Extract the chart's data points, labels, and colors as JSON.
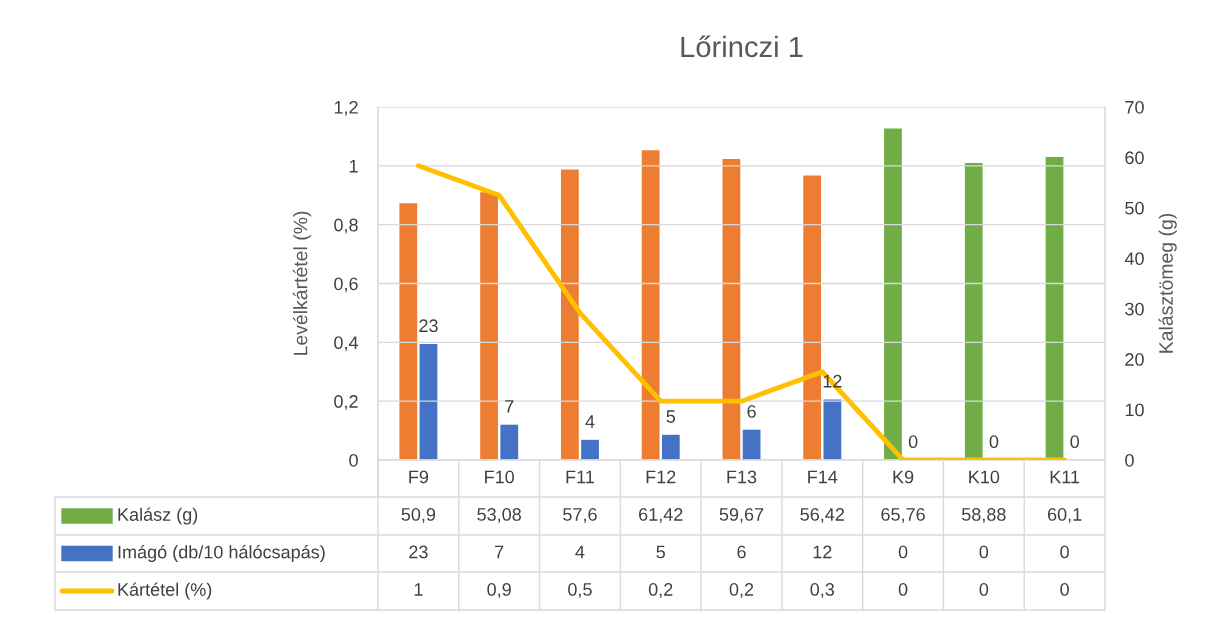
{
  "chart_data": {
    "type": "bar",
    "title": "Lőrinczi 1",
    "ylabel": "Levélkártétel (%)",
    "y2label": "Kalásztömeg (g)",
    "categories": [
      "F9",
      "F10",
      "F11",
      "F12",
      "F13",
      "F14",
      "K9",
      "K10",
      "K11"
    ],
    "series": [
      {
        "name": "Kalász (g)",
        "axis": "y2",
        "color": "#70ad47",
        "colors": [
          "#ed7d31",
          "#ed7d31",
          "#ed7d31",
          "#ed7d31",
          "#ed7d31",
          "#ed7d31",
          "#70ad47",
          "#70ad47",
          "#70ad47"
        ],
        "values": [
          50.9,
          53.08,
          57.6,
          61.42,
          59.67,
          56.42,
          65.76,
          58.88,
          60.1
        ],
        "value_labels": [
          "50,9",
          "53,08",
          "57,6",
          "61,42",
          "59,67",
          "56,42",
          "65,76",
          "58,88",
          "60,1"
        ]
      },
      {
        "name": "Imágó (db/10 hálócsapás)",
        "axis": "y2",
        "color": "#4472c4",
        "values": [
          23,
          7,
          4,
          5,
          6,
          12,
          0,
          0,
          0
        ],
        "value_labels": [
          "23",
          "7",
          "4",
          "5",
          "6",
          "12",
          "0",
          "0",
          "0"
        ],
        "data_labels": true
      },
      {
        "name": "Kártétel (%)",
        "type": "line",
        "axis": "y",
        "color": "#ffc000",
        "values": [
          1,
          0.9,
          0.5,
          0.2,
          0.2,
          0.3,
          0,
          0,
          0
        ],
        "value_labels": [
          "1",
          "0,9",
          "0,5",
          "0,2",
          "0,2",
          "0,3",
          "0",
          "0",
          "0"
        ]
      }
    ],
    "ylim": [
      0,
      1.2
    ],
    "yticks": [
      0,
      {
        "value": 0.2,
        "label": "0,2"
      },
      {
        "value": 0.4,
        "label": "0,4"
      },
      {
        "value": 0.6,
        "label": "0,6"
      },
      {
        "value": 0.8,
        "label": "0,8"
      },
      1,
      {
        "value": 1.2,
        "label": "1,2"
      }
    ],
    "y2lim": [
      0,
      70
    ],
    "y2ticks": [
      0,
      10,
      20,
      30,
      40,
      50,
      60,
      70
    ],
    "grid": "y",
    "legend": "bottom",
    "marker": "none",
    "line_style": "solid"
  }
}
